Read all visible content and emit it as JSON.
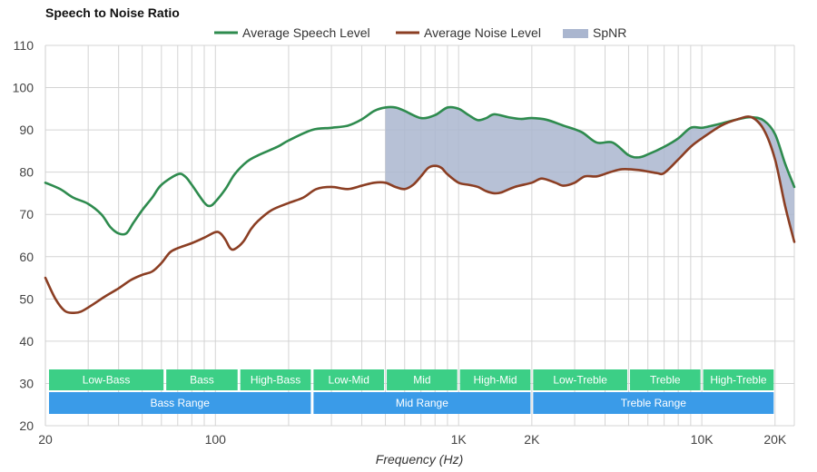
{
  "chart_data": {
    "type": "line",
    "title": "Speech to Noise Ratio",
    "xlabel": "Frequency (Hz)",
    "ylabel": "",
    "xscale": "log",
    "xlim": [
      20,
      24000
    ],
    "ylim": [
      20,
      110
    ],
    "y_ticks": [
      "20",
      "30",
      "40",
      "50",
      "60",
      "70",
      "80",
      "90",
      "100",
      "110"
    ],
    "x_ticks": [
      {
        "value": 20,
        "label": "20"
      },
      {
        "value": 100,
        "label": "100"
      },
      {
        "value": 1000,
        "label": "1K"
      },
      {
        "value": 2000,
        "label": "2K"
      },
      {
        "value": 10000,
        "label": "10K"
      },
      {
        "value": 20000,
        "label": "20K"
      }
    ],
    "grid": true,
    "legend_position": "top-center",
    "legend": [
      {
        "label": "Average Speech Level",
        "kind": "line",
        "color": "#2e8b4e"
      },
      {
        "label": "Average Noise Level",
        "kind": "line",
        "color": "#8b3e23"
      },
      {
        "label": "SpNR",
        "kind": "area",
        "color": "#aab6cf"
      }
    ],
    "fill_region_start_hz": 500,
    "series": [
      {
        "name": "Average Speech Level",
        "color": "#2e8b4e",
        "points": [
          [
            20,
            77.5
          ],
          [
            23,
            76
          ],
          [
            26,
            74
          ],
          [
            30,
            72.5
          ],
          [
            34,
            70
          ],
          [
            37,
            67
          ],
          [
            40,
            65.5
          ],
          [
            43,
            65.5
          ],
          [
            46,
            68
          ],
          [
            50,
            71
          ],
          [
            55,
            74
          ],
          [
            60,
            77
          ],
          [
            70,
            79.5
          ],
          [
            75,
            79
          ],
          [
            80,
            77
          ],
          [
            90,
            72.8
          ],
          [
            95,
            72
          ],
          [
            100,
            73
          ],
          [
            110,
            76
          ],
          [
            120,
            79.5
          ],
          [
            135,
            82.5
          ],
          [
            150,
            84
          ],
          [
            180,
            86
          ],
          [
            200,
            87.5
          ],
          [
            250,
            90
          ],
          [
            300,
            90.5
          ],
          [
            350,
            91
          ],
          [
            400,
            92.5
          ],
          [
            450,
            94.5
          ],
          [
            500,
            95.3
          ],
          [
            550,
            95.3
          ],
          [
            600,
            94.5
          ],
          [
            700,
            92.8
          ],
          [
            800,
            93.5
          ],
          [
            900,
            95.3
          ],
          [
            1000,
            95
          ],
          [
            1100,
            93.5
          ],
          [
            1200,
            92.3
          ],
          [
            1300,
            92.8
          ],
          [
            1400,
            93.7
          ],
          [
            1600,
            93
          ],
          [
            1800,
            92.6
          ],
          [
            2000,
            92.8
          ],
          [
            2300,
            92.4
          ],
          [
            2700,
            91
          ],
          [
            3200,
            89.5
          ],
          [
            3700,
            87
          ],
          [
            4300,
            87
          ],
          [
            5000,
            84
          ],
          [
            5500,
            83.5
          ],
          [
            6000,
            84.2
          ],
          [
            7000,
            86
          ],
          [
            8000,
            88
          ],
          [
            9000,
            90.5
          ],
          [
            10000,
            90.5
          ],
          [
            11000,
            91
          ],
          [
            12000,
            91.5
          ],
          [
            14000,
            92.5
          ],
          [
            16000,
            93
          ],
          [
            18000,
            92.2
          ],
          [
            20000,
            89
          ],
          [
            22000,
            82
          ],
          [
            24000,
            76.5
          ]
        ]
      },
      {
        "name": "Average Noise Level",
        "color": "#8b3e23",
        "points": [
          [
            20,
            55
          ],
          [
            22,
            50
          ],
          [
            24,
            47.2
          ],
          [
            26,
            46.7
          ],
          [
            28,
            47
          ],
          [
            31,
            48.5
          ],
          [
            35,
            50.5
          ],
          [
            40,
            52.5
          ],
          [
            45,
            54.5
          ],
          [
            50,
            55.7
          ],
          [
            55,
            56.5
          ],
          [
            60,
            58.5
          ],
          [
            65,
            61
          ],
          [
            70,
            62
          ],
          [
            80,
            63.2
          ],
          [
            90,
            64.5
          ],
          [
            100,
            65.8
          ],
          [
            105,
            65.5
          ],
          [
            110,
            64
          ],
          [
            115,
            62
          ],
          [
            120,
            61.8
          ],
          [
            130,
            63.5
          ],
          [
            140,
            66.5
          ],
          [
            150,
            68.5
          ],
          [
            170,
            71
          ],
          [
            200,
            72.7
          ],
          [
            230,
            74
          ],
          [
            260,
            76
          ],
          [
            300,
            76.5
          ],
          [
            350,
            76
          ],
          [
            400,
            76.8
          ],
          [
            450,
            77.5
          ],
          [
            500,
            77.5
          ],
          [
            550,
            76.5
          ],
          [
            600,
            76
          ],
          [
            650,
            77
          ],
          [
            700,
            79
          ],
          [
            750,
            81
          ],
          [
            800,
            81.5
          ],
          [
            850,
            81
          ],
          [
            900,
            79.5
          ],
          [
            1000,
            77.5
          ],
          [
            1100,
            77
          ],
          [
            1200,
            76.5
          ],
          [
            1300,
            75.5
          ],
          [
            1400,
            75
          ],
          [
            1500,
            75.2
          ],
          [
            1700,
            76.5
          ],
          [
            2000,
            77.5
          ],
          [
            2200,
            78.5
          ],
          [
            2500,
            77.5
          ],
          [
            2700,
            76.8
          ],
          [
            3000,
            77.5
          ],
          [
            3300,
            79
          ],
          [
            3700,
            79
          ],
          [
            4200,
            80
          ],
          [
            4700,
            80.7
          ],
          [
            5500,
            80.5
          ],
          [
            6500,
            79.8
          ],
          [
            7000,
            79.8
          ],
          [
            8000,
            83
          ],
          [
            9000,
            86
          ],
          [
            10000,
            88
          ],
          [
            12000,
            91
          ],
          [
            14000,
            92.5
          ],
          [
            16000,
            93
          ],
          [
            18000,
            90
          ],
          [
            20000,
            83
          ],
          [
            22000,
            72
          ],
          [
            24000,
            63.5
          ]
        ]
      }
    ],
    "bands": [
      {
        "row": 1,
        "label": "Low-Bass",
        "from": 20,
        "to": 62,
        "color": "#3ccf86"
      },
      {
        "row": 1,
        "label": "Bass",
        "from": 62,
        "to": 125,
        "color": "#3ccf86"
      },
      {
        "row": 1,
        "label": "High-Bass",
        "from": 125,
        "to": 250,
        "color": "#3ccf86"
      },
      {
        "row": 1,
        "label": "Low-Mid",
        "from": 250,
        "to": 500,
        "color": "#3ccf86"
      },
      {
        "row": 1,
        "label": "Mid",
        "from": 500,
        "to": 1000,
        "color": "#3ccf86"
      },
      {
        "row": 1,
        "label": "High-Mid",
        "from": 1000,
        "to": 2000,
        "color": "#3ccf86"
      },
      {
        "row": 1,
        "label": "Low-Treble",
        "from": 2000,
        "to": 5000,
        "color": "#3ccf86"
      },
      {
        "row": 1,
        "label": "Treble",
        "from": 5000,
        "to": 10000,
        "color": "#3ccf86"
      },
      {
        "row": 1,
        "label": "High-Treble",
        "from": 10000,
        "to": 20000,
        "color": "#3ccf86"
      },
      {
        "row": 2,
        "label": "Bass Range",
        "from": 20,
        "to": 250,
        "color": "#3a9be8"
      },
      {
        "row": 2,
        "label": "Mid Range",
        "from": 250,
        "to": 2000,
        "color": "#3a9be8"
      },
      {
        "row": 2,
        "label": "Treble Range",
        "from": 2000,
        "to": 20000,
        "color": "#3a9be8"
      }
    ]
  }
}
